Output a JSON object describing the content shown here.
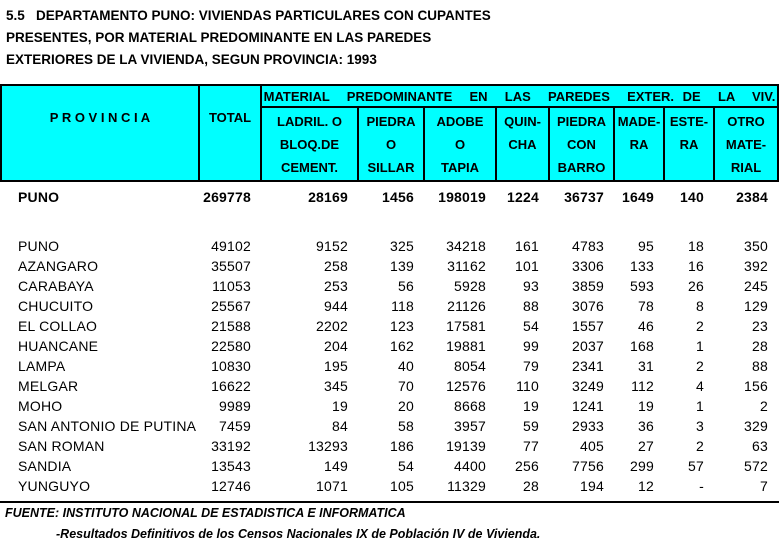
{
  "title": {
    "line1": "5.5   DEPARTAMENTO PUNO: VIVIENDAS PARTICULARES CON CUPANTES",
    "line2": "PRESENTES, POR MATERIAL PREDOMINANTE EN LAS PAREDES",
    "line3": "EXTERIORES DE LA VIVIENDA, SEGUN PROVINCIA: 1993"
  },
  "table": {
    "header": {
      "provincia": "P R O V I N C I A",
      "total": "TOTAL",
      "material_span": "MATERIAL  PREDOMINANTE  EN  LAS  PAREDES  EXTER. DE  LA  VIV.",
      "columns": [
        {
          "key": "ladrillo-o-bloque-de-cemento",
          "lines": [
            "LADRIL. O",
            "BLOQ.DE",
            "CEMENT."
          ]
        },
        {
          "key": "piedra-o-sillar",
          "lines": [
            "PIEDRA",
            "O",
            "SILLAR"
          ]
        },
        {
          "key": "adobe-o-tapia",
          "lines": [
            "ADOBE",
            "O",
            "TAPIA"
          ]
        },
        {
          "key": "quincha",
          "lines": [
            "QUIN-",
            "CHA",
            ""
          ]
        },
        {
          "key": "piedra-con-barro",
          "lines": [
            "PIEDRA",
            "CON",
            "BARRO"
          ]
        },
        {
          "key": "madera",
          "lines": [
            "MADE-",
            "RA",
            ""
          ]
        },
        {
          "key": "estera",
          "lines": [
            "ESTE-",
            "RA",
            ""
          ]
        },
        {
          "key": "otro-material",
          "lines": [
            "OTRO",
            "MATE-",
            "RIAL"
          ]
        }
      ]
    },
    "department_total_row": {
      "province": "PUNO",
      "values": [
        "269778",
        "28169",
        "1456",
        "198019",
        "1224",
        "36737",
        "1649",
        "140",
        "2384"
      ]
    },
    "rows": [
      {
        "province": "PUNO",
        "values": [
          "49102",
          "9152",
          "325",
          "34218",
          "161",
          "4783",
          "95",
          "18",
          "350"
        ]
      },
      {
        "province": "AZANGARO",
        "values": [
          "35507",
          "258",
          "139",
          "31162",
          "101",
          "3306",
          "133",
          "16",
          "392"
        ]
      },
      {
        "province": "CARABAYA",
        "values": [
          "11053",
          "253",
          "56",
          "5928",
          "93",
          "3859",
          "593",
          "26",
          "245"
        ]
      },
      {
        "province": "CHUCUITO",
        "values": [
          "25567",
          "944",
          "118",
          "21126",
          "88",
          "3076",
          "78",
          "8",
          "129"
        ]
      },
      {
        "province": "EL COLLAO",
        "values": [
          "21588",
          "2202",
          "123",
          "17581",
          "54",
          "1557",
          "46",
          "2",
          "23"
        ]
      },
      {
        "province": "HUANCANE",
        "values": [
          "22580",
          "204",
          "162",
          "19881",
          "99",
          "2037",
          "168",
          "1",
          "28"
        ]
      },
      {
        "province": "LAMPA",
        "values": [
          "10830",
          "195",
          "40",
          "8054",
          "79",
          "2341",
          "31",
          "2",
          "88"
        ]
      },
      {
        "province": "MELGAR",
        "values": [
          "16622",
          "345",
          "70",
          "12576",
          "110",
          "3249",
          "112",
          "4",
          "156"
        ]
      },
      {
        "province": "MOHO",
        "values": [
          "9989",
          "19",
          "20",
          "8668",
          "19",
          "1241",
          "19",
          "1",
          "2"
        ]
      },
      {
        "province": "SAN ANTONIO DE PUTINA",
        "values": [
          "7459",
          "84",
          "58",
          "3957",
          "59",
          "2933",
          "36",
          "3",
          "329"
        ]
      },
      {
        "province": "SAN ROMAN",
        "values": [
          "33192",
          "13293",
          "186",
          "19139",
          "77",
          "405",
          "27",
          "2",
          "63"
        ]
      },
      {
        "province": "SANDIA",
        "values": [
          "13543",
          "149",
          "54",
          "4400",
          "256",
          "7756",
          "299",
          "57",
          "572"
        ]
      },
      {
        "province": "YUNGUYO",
        "values": [
          "12746",
          "1071",
          "105",
          "11329",
          "28",
          "194",
          "12",
          "-",
          "7"
        ]
      }
    ]
  },
  "footer": {
    "source": "FUENTE: INSTITUTO NACIONAL DE ESTADISTICA E INFORMATICA",
    "note": "-Resultados Definitivos de los Censos Nacionales IX de Población IV de Vivienda."
  },
  "colors": {
    "header_bg": "#00ffff",
    "border": "#000000",
    "text": "#000000",
    "background": "#ffffff"
  }
}
